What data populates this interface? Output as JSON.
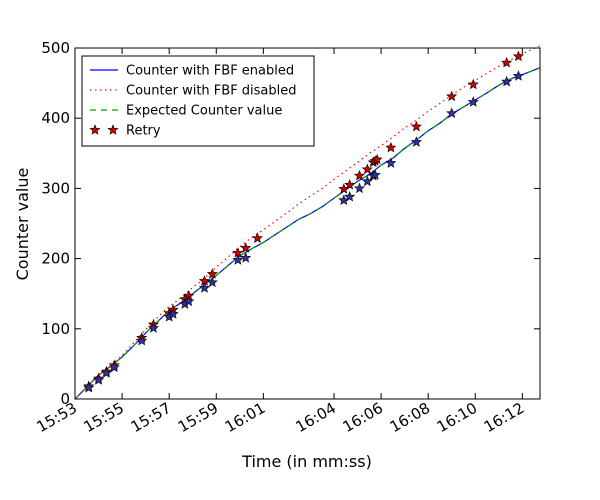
{
  "chart_data": {
    "type": "line",
    "title": "",
    "xlabel": "Time (in mm:ss)",
    "ylabel": "Counter value",
    "xlim": [
      "15:53:00",
      "16:12:45"
    ],
    "ylim": [
      0,
      500
    ],
    "x_ticks": [
      "15:53",
      "15:55",
      "15:57",
      "15:59",
      "16:01",
      "16:04",
      "16:06",
      "16:08",
      "16:10",
      "16:12"
    ],
    "y_ticks": [
      0,
      100,
      200,
      300,
      400,
      500
    ],
    "grid": false,
    "legend_position": "top-left",
    "series": [
      {
        "name": "Counter with FBF enabled",
        "style": "solid",
        "color": "#0000ff",
        "x": [
          "15:53:00",
          "15:53:30",
          "15:54:00",
          "15:54:30",
          "15:55:00",
          "15:55:30",
          "15:56:00",
          "15:56:30",
          "15:57:00",
          "15:57:30",
          "15:58:00",
          "15:58:30",
          "15:59:00",
          "15:59:30",
          "16:00:00",
          "16:00:30",
          "16:01:00",
          "16:01:30",
          "16:02:00",
          "16:02:30",
          "16:03:00",
          "16:03:30",
          "16:04:00",
          "16:04:30",
          "16:05:00",
          "16:05:30",
          "16:06:00",
          "16:06:30",
          "16:07:00",
          "16:07:30",
          "16:08:00",
          "16:08:30",
          "16:09:00",
          "16:09:30",
          "16:10:00",
          "16:10:30",
          "16:11:00",
          "16:11:30",
          "16:12:00",
          "16:12:45"
        ],
        "y": [
          0,
          17,
          34,
          46,
          60,
          76,
          94,
          110,
          126,
          137,
          150,
          163,
          176,
          190,
          204,
          214,
          223,
          234,
          245,
          256,
          264,
          274,
          286,
          298,
          310,
          320,
          333,
          343,
          357,
          369,
          382,
          393,
          406,
          416,
          426,
          436,
          447,
          456,
          462,
          472
        ]
      },
      {
        "name": "Counter with FBF disabled",
        "style": "dotted",
        "color": "#ff0000",
        "x": [
          "15:53:00",
          "15:53:30",
          "15:54:00",
          "15:54:30",
          "15:55:00",
          "15:55:30",
          "15:56:00",
          "15:56:30",
          "15:57:00",
          "15:57:30",
          "15:58:00",
          "15:58:30",
          "15:59:00",
          "15:59:30",
          "16:00:00",
          "16:00:30",
          "16:01:00",
          "16:01:30",
          "16:02:00",
          "16:02:30",
          "16:03:00",
          "16:03:30",
          "16:04:00",
          "16:04:30",
          "16:05:00",
          "16:05:30",
          "16:06:00",
          "16:06:30",
          "16:07:00",
          "16:07:30",
          "16:08:00",
          "16:08:30",
          "16:09:00",
          "16:09:30",
          "16:10:00",
          "16:10:30",
          "16:11:00",
          "16:11:30",
          "16:12:00",
          "16:12:45"
        ],
        "y": [
          0,
          17,
          34,
          47,
          62,
          80,
          99,
          116,
          132,
          144,
          159,
          172,
          188,
          202,
          217,
          230,
          241,
          253,
          265,
          278,
          289,
          300,
          313,
          325,
          337,
          350,
          361,
          373,
          386,
          397,
          410,
          421,
          433,
          444,
          454,
          464,
          474,
          483,
          492,
          503
        ]
      },
      {
        "name": "Expected Counter value",
        "style": "dashed",
        "color": "#00a000",
        "x": [
          "15:53:00",
          "15:53:30",
          "15:54:00",
          "15:54:30",
          "15:55:00",
          "15:55:30",
          "15:56:00",
          "15:56:30",
          "15:57:00",
          "15:57:30",
          "15:58:00",
          "15:58:30",
          "15:59:00",
          "15:59:30",
          "16:00:00",
          "16:00:30",
          "16:01:00",
          "16:01:30",
          "16:02:00",
          "16:02:30",
          "16:03:00",
          "16:03:30",
          "16:04:00",
          "16:04:30",
          "16:05:00",
          "16:05:30",
          "16:06:00",
          "16:06:30",
          "16:07:00",
          "16:07:30",
          "16:08:00",
          "16:08:30",
          "16:09:00",
          "16:09:30",
          "16:10:00",
          "16:10:30",
          "16:11:00",
          "16:11:30",
          "16:12:00",
          "16:12:45"
        ],
        "y": [
          0,
          17,
          34,
          46,
          60,
          76,
          94,
          110,
          126,
          137,
          150,
          163,
          176,
          190,
          204,
          214,
          223,
          234,
          245,
          256,
          264,
          274,
          286,
          298,
          310,
          320,
          333,
          343,
          357,
          369,
          382,
          393,
          406,
          416,
          426,
          436,
          447,
          456,
          462,
          472
        ]
      },
      {
        "name": "Retry",
        "style": "markers",
        "marker": "star",
        "color": "#cc0000",
        "x": [
          "15:53:35",
          "15:54:00",
          "15:54:20",
          "15:54:40",
          "15:55:50",
          "15:56:20",
          "15:57:00",
          "15:57:10",
          "15:57:40",
          "15:57:50",
          "15:58:30",
          "15:58:50",
          "15:59:55",
          "16:00:15",
          "16:00:45",
          "16:04:25",
          "16:04:40",
          "16:05:05",
          "16:05:25",
          "16:05:40",
          "16:05:45",
          "16:05:50",
          "16:06:25",
          "16:07:30",
          "16:09:00",
          "16:09:55",
          "16:11:20",
          "16:11:50"
        ],
        "y": [
          18,
          29,
          39,
          48,
          87,
          106,
          122,
          127,
          142,
          147,
          168,
          178,
          208,
          215,
          229,
          299,
          305,
          318,
          327,
          337,
          339,
          341,
          358,
          388,
          431,
          448,
          479,
          488
        ]
      },
      {
        "name": "Retry",
        "style": "markers",
        "marker": "star",
        "color": "#3030a0",
        "x": [
          "15:53:35",
          "15:54:00",
          "15:54:20",
          "15:54:40",
          "15:55:50",
          "15:56:20",
          "15:57:00",
          "15:57:10",
          "15:57:40",
          "15:57:50",
          "15:58:30",
          "15:58:50",
          "15:59:55",
          "16:00:15",
          "16:04:25",
          "16:04:40",
          "16:05:05",
          "16:05:25",
          "16:05:40",
          "16:05:45",
          "16:06:25",
          "16:07:30",
          "16:09:00",
          "16:09:55",
          "16:11:20",
          "16:11:50"
        ],
        "y": [
          16,
          27,
          37,
          45,
          83,
          101,
          117,
          121,
          135,
          139,
          158,
          166,
          198,
          201,
          283,
          288,
          300,
          310,
          318,
          319,
          336,
          366,
          407,
          423,
          452,
          460
        ]
      }
    ]
  }
}
